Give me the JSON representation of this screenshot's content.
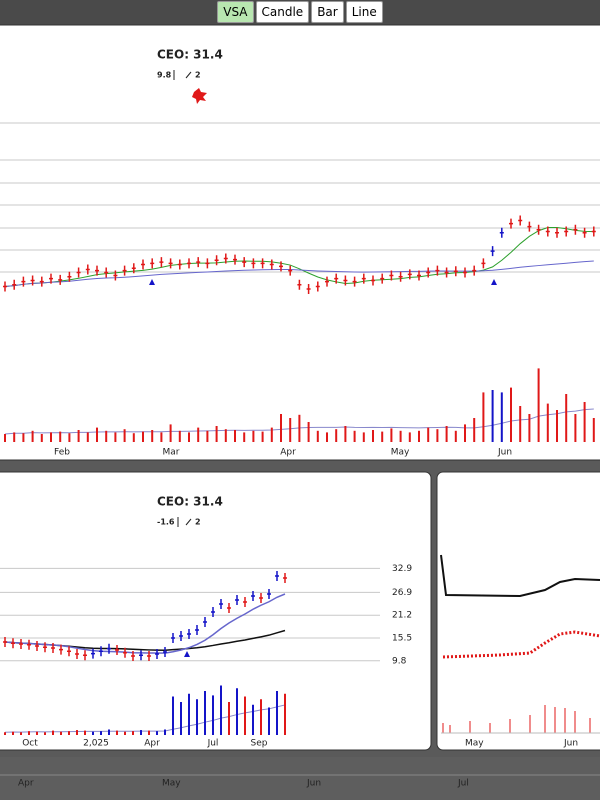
{
  "toolbar": {
    "buttons": [
      "VSA",
      "Candle",
      "Bar",
      "Line"
    ],
    "active": 0
  },
  "up_color": "#1414c8",
  "down_color": "#e01818",
  "main_panel": {
    "label": "CEO: 31.4",
    "stats": [
      9.8,
      2
    ],
    "x_labels": [
      "Feb",
      "Mar",
      "Apr",
      "May",
      "Jun"
    ],
    "ylim": [
      9.5,
      14
    ],
    "volume_lim": [
      0,
      100
    ],
    "grid": true,
    "price": [
      9.72,
      9.75,
      9.8,
      9.82,
      9.8,
      9.85,
      9.83,
      9.88,
      9.95,
      10.0,
      9.98,
      9.95,
      9.9,
      9.98,
      10.02,
      10.08,
      10.1,
      10.12,
      10.1,
      10.08,
      10.1,
      10.12,
      10.1,
      10.15,
      10.18,
      10.16,
      10.12,
      10.1,
      10.1,
      10.08,
      10.05,
      9.98,
      9.75,
      9.68,
      9.72,
      9.8,
      9.85,
      9.82,
      9.8,
      9.85,
      9.82,
      9.85,
      9.9,
      9.88,
      9.92,
      9.9,
      9.95,
      9.98,
      9.95,
      9.97,
      9.95,
      9.98,
      10.1,
      10.3,
      10.6,
      10.75,
      10.8,
      10.7,
      10.65,
      10.62,
      10.6,
      10.62,
      10.65,
      10.6,
      10.62
    ],
    "volume": [
      10,
      12,
      11,
      14,
      10,
      12,
      13,
      11,
      15,
      12,
      18,
      14,
      12,
      16,
      11,
      13,
      15,
      12,
      22,
      14,
      12,
      18,
      14,
      20,
      16,
      15,
      12,
      14,
      13,
      18,
      35,
      30,
      34,
      25,
      14,
      12,
      16,
      20,
      14,
      12,
      15,
      13,
      17,
      14,
      12,
      14,
      18,
      16,
      20,
      14,
      22,
      30,
      62,
      65,
      62,
      68,
      45,
      35,
      92,
      48,
      40,
      60,
      35,
      50,
      30
    ]
  },
  "panel_2": {
    "label": "CEO: 31.4",
    "stats": [
      -1.6,
      2
    ],
    "x_labels": [
      "Oct",
      "2,025",
      "Apr",
      "Jul",
      "Sep"
    ],
    "ylim": [
      5,
      40
    ],
    "yticks": [
      32.9,
      26.9,
      21.2,
      15.5,
      9.8
    ],
    "volume_lim": [
      0,
      100
    ],
    "grid": true,
    "price": [
      14.5,
      14.2,
      14.0,
      13.8,
      13.5,
      13.2,
      13.0,
      12.6,
      12.2,
      11.5,
      11.2,
      11.6,
      12.2,
      12.8,
      12.5,
      11.8,
      11.0,
      11.2,
      11.0,
      11.5,
      12.0,
      15.5,
      16.0,
      16.5,
      17.5,
      19.5,
      22,
      24,
      23,
      25,
      24.5,
      26,
      25.5,
      26.5,
      31,
      30.5
    ],
    "volume": [
      5,
      6,
      5,
      7,
      6,
      5,
      8,
      6,
      7,
      9,
      8,
      6,
      7,
      10,
      8,
      6,
      7,
      9,
      8,
      7,
      10,
      70,
      60,
      75,
      65,
      80,
      72,
      90,
      60,
      85,
      70,
      55,
      65,
      50,
      80,
      75
    ]
  },
  "panel_3": {
    "x_labels": [
      "May",
      "Jun"
    ]
  },
  "timeline": {
    "labels": [
      "Apr",
      "May",
      "Jun",
      "Jul"
    ]
  }
}
